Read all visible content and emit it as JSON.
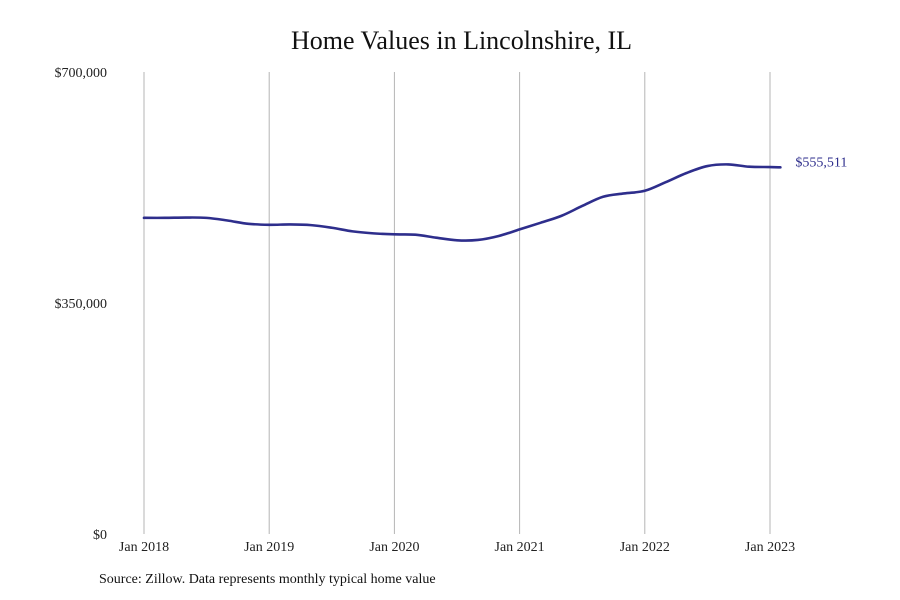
{
  "chart_data": {
    "type": "line",
    "title": "Home Values in Lincolnshire, IL",
    "xlabel": "",
    "ylabel": "",
    "ylim": [
      0,
      700000
    ],
    "y_ticks": [
      {
        "value": 0,
        "label": "$0"
      },
      {
        "value": 350000,
        "label": "$350,000"
      },
      {
        "value": 700000,
        "label": "$700,000"
      }
    ],
    "x_ticks": [
      "Jan 2018",
      "Jan 2019",
      "Jan 2020",
      "Jan 2021",
      "Jan 2022",
      "Jan 2023"
    ],
    "x_tick_values": [
      "2018-01",
      "2019-01",
      "2020-01",
      "2021-01",
      "2022-01",
      "2023-01"
    ],
    "grid": "vertical",
    "line_color": "#2e2e8c",
    "end_label": "$555,511",
    "series": [
      {
        "x": [
          "2018-01",
          "2018-03",
          "2018-05",
          "2018-07",
          "2018-09",
          "2018-11",
          "2019-01",
          "2019-03",
          "2019-05",
          "2019-07",
          "2019-09",
          "2019-11",
          "2020-01",
          "2020-03",
          "2020-05",
          "2020-07",
          "2020-09",
          "2020-11",
          "2021-01",
          "2021-03",
          "2021-05",
          "2021-07",
          "2021-09",
          "2021-11",
          "2022-01",
          "2022-03",
          "2022-05",
          "2022-07",
          "2022-09",
          "2022-11",
          "2023-01",
          "2023-02"
        ],
        "y": [
          479000,
          479000,
          479500,
          479000,
          475000,
          470000,
          468500,
          469000,
          468000,
          464000,
          458500,
          455500,
          454000,
          453500,
          449000,
          445000,
          445500,
          451500,
          461500,
          471500,
          482000,
          497000,
          511000,
          516000,
          520000,
          533000,
          547000,
          557500,
          560000,
          556500,
          556000,
          555511
        ]
      }
    ]
  },
  "footer": {
    "source": "Source: Zillow. Data represents monthly typical home value"
  }
}
